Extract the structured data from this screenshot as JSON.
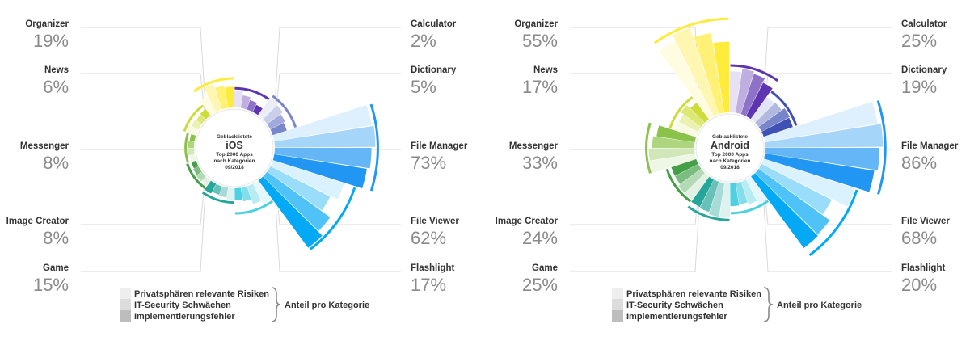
{
  "chart_data": [
    {
      "type": "polar-bar",
      "id": "ios",
      "center_label": {
        "line1": "Geblacklistete",
        "platform": "iOS",
        "line3": "Top 2000 Apps",
        "line4": "nach Kategorien",
        "line5": "09/2018"
      },
      "categories": [
        {
          "name": "Calculator",
          "value": "2%",
          "color": "#5e35b1",
          "bars": [
            0.17,
            0.13,
            0.1,
            0.08
          ]
        },
        {
          "name": "Dictionary",
          "value": "5%",
          "color": "#7986cb",
          "bars": [
            0.22,
            0.2,
            0.17,
            0.15
          ]
        },
        {
          "name": "File Manager",
          "value": "73%",
          "color": "#2196f3",
          "bars": [
            1.0,
            1.02,
            0.98,
            0.95
          ]
        },
        {
          "name": "File Viewer",
          "value": "62%",
          "color": "#03a9f4",
          "bars": [
            0.76,
            0.68,
            0.79,
            0.85
          ]
        },
        {
          "name": "Flashlight",
          "value": "17%",
          "color": "#4dd0e1",
          "bars": [
            0.23,
            0.19,
            0.14,
            0.12
          ]
        },
        {
          "name": "Game",
          "value": "15%",
          "color": "#26a69a",
          "bars": [
            0.12,
            0.1,
            0.09,
            0.11
          ]
        },
        {
          "name": "Image Creator",
          "value": "8%",
          "color": "#43a047",
          "bars": [
            0.06,
            0.07,
            0.06,
            0.05
          ]
        },
        {
          "name": "Messenger",
          "value": "8%",
          "color": "#8bc34a",
          "bars": [
            0.05,
            0.06,
            0.06,
            0.05
          ]
        },
        {
          "name": "News",
          "value": "6%",
          "color": "#cddc39",
          "bars": [
            0.1,
            0.08,
            0.07,
            0.08
          ]
        },
        {
          "name": "Organizer",
          "value": "19%",
          "color": "#ffeb3b",
          "bars": [
            0.18,
            0.27,
            0.23,
            0.21
          ]
        }
      ]
    },
    {
      "type": "polar-bar",
      "id": "android",
      "center_label": {
        "line1": "Geblacklistete",
        "platform": "Android",
        "line3": "Top 2000 Apps",
        "line4": "nach Kategorien",
        "line5": "09/2018"
      },
      "categories": [
        {
          "name": "Calculator",
          "value": "25%",
          "color": "#5e35b1",
          "bars": [
            0.36,
            0.39,
            0.37,
            0.33
          ]
        },
        {
          "name": "Dictionary",
          "value": "19%",
          "color": "#3f51b5",
          "bars": [
            0.24,
            0.25,
            0.28,
            0.27
          ]
        },
        {
          "name": "File Manager",
          "value": "86%",
          "color": "#2196f3",
          "bars": [
            1.0,
            1.03,
            1.0,
            0.97
          ]
        },
        {
          "name": "File Viewer",
          "value": "68%",
          "color": "#03a9f4",
          "bars": [
            0.84,
            0.69,
            0.77,
            0.78
          ]
        },
        {
          "name": "Flashlight",
          "value": "20%",
          "color": "#4dd0e1",
          "bars": [
            0.24,
            0.21,
            0.19,
            0.2
          ]
        },
        {
          "name": "Game",
          "value": "25%",
          "color": "#26a69a",
          "bars": [
            0.3,
            0.3,
            0.28,
            0.27
          ]
        },
        {
          "name": "Image Creator",
          "value": "24%",
          "color": "#43a047",
          "bars": [
            0.25,
            0.25,
            0.23,
            0.23
          ]
        },
        {
          "name": "Messenger",
          "value": "33%",
          "color": "#8bc34a",
          "bars": [
            0.4,
            0.4,
            0.37,
            0.34
          ]
        },
        {
          "name": "News",
          "value": "17%",
          "color": "#cddc39",
          "bars": [
            0.2,
            0.19,
            0.22,
            0.18
          ]
        },
        {
          "name": "Organizer",
          "value": "55%",
          "color": "#ffeb3b",
          "bars": [
            0.74,
            0.8,
            0.71,
            0.62
          ]
        }
      ]
    }
  ],
  "legend": {
    "items": [
      {
        "label": "Privatsphären relevante Risiken",
        "color": "#eeeeee"
      },
      {
        "label": "IT-Security Schwächen",
        "color": "#dcdcdc"
      },
      {
        "label": "Implementierungsfehler",
        "color": "#bdbdbd"
      }
    ],
    "group_label": "Anteil pro Kategorie"
  }
}
